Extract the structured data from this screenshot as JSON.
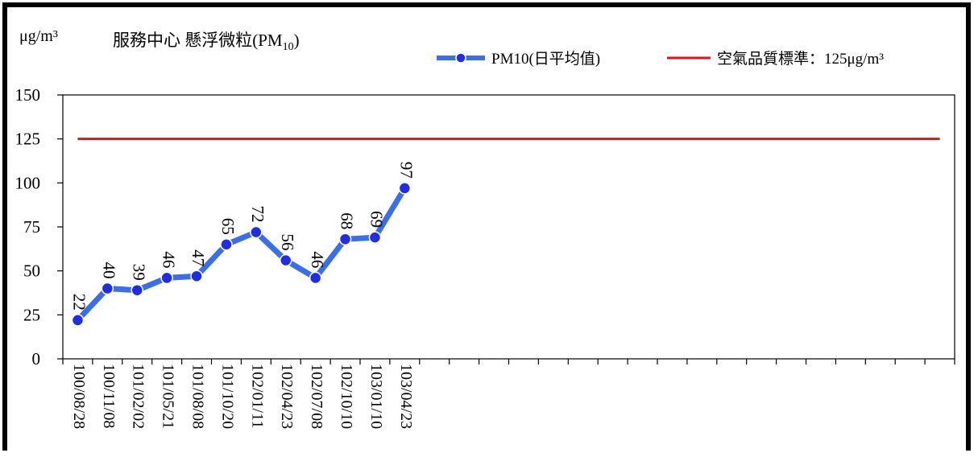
{
  "unit_label": "μg/m³",
  "title_main": "服務中心 懸浮微粒(PM",
  "title_sub": "10",
  "title_close": ")",
  "legend": {
    "series_label": "PM10(日平均值)",
    "standard_label": "空氣品質標準：125μg/m³"
  },
  "colors": {
    "series": "#3a6fe8",
    "marker": "#1f2ee0",
    "standard": "#e0111b"
  },
  "chart_data": {
    "type": "line",
    "categories": [
      "100/08/28",
      "100/11/08",
      "101/02/02",
      "101/05/21",
      "101/08/08",
      "101/10/20",
      "102/01/11",
      "102/04/23",
      "102/07/08",
      "102/10/10",
      "103/01/10",
      "103/04/23"
    ],
    "series": [
      {
        "name": "PM10(日平均值)",
        "values": [
          22,
          40,
          39,
          46,
          47,
          65,
          72,
          56,
          46,
          68,
          69,
          97
        ]
      },
      {
        "name": "空氣品質標準：125μg/m³",
        "value": 125
      }
    ],
    "ylim": [
      0,
      150
    ],
    "yticks": [
      0,
      25,
      50,
      75,
      100,
      125,
      150
    ],
    "total_slots": 30,
    "ylabel": "μg/m³"
  }
}
